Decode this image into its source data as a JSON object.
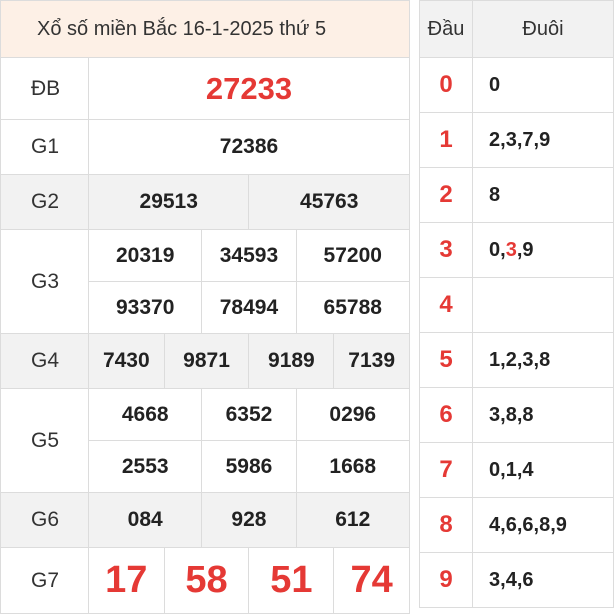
{
  "title": "Xổ số miền Bắc 16-1-2025 thứ 5",
  "prizes": {
    "db": {
      "label": "ĐB",
      "numbers": [
        "27233"
      ]
    },
    "g1": {
      "label": "G1",
      "numbers": [
        "72386"
      ]
    },
    "g2": {
      "label": "G2",
      "numbers": [
        "29513",
        "45763"
      ]
    },
    "g3": {
      "label": "G3",
      "numbers": [
        "20319",
        "34593",
        "57200",
        "93370",
        "78494",
        "65788"
      ]
    },
    "g4": {
      "label": "G4",
      "numbers": [
        "7430",
        "9871",
        "9189",
        "7139"
      ]
    },
    "g5": {
      "label": "G5",
      "numbers": [
        "4668",
        "6352",
        "0296",
        "2553",
        "5986",
        "1668"
      ]
    },
    "g6": {
      "label": "G6",
      "numbers": [
        "084",
        "928",
        "612"
      ]
    },
    "g7": {
      "label": "G7",
      "numbers": [
        "17",
        "58",
        "51",
        "74"
      ]
    }
  },
  "heads_table": {
    "header_head": "Đầu",
    "header_tail": "Đuôi",
    "rows": [
      {
        "head": "0",
        "tails": [
          "0"
        ]
      },
      {
        "head": "1",
        "tails": [
          "2",
          "3",
          "7",
          "9"
        ]
      },
      {
        "head": "2",
        "tails": [
          "8"
        ]
      },
      {
        "head": "3",
        "tails": [
          "0",
          "3",
          "9"
        ],
        "highlight_index": 1
      },
      {
        "head": "4",
        "tails": []
      },
      {
        "head": "5",
        "tails": [
          "1",
          "2",
          "3",
          "8"
        ]
      },
      {
        "head": "6",
        "tails": [
          "3",
          "8",
          "8"
        ]
      },
      {
        "head": "7",
        "tails": [
          "0",
          "1",
          "4"
        ]
      },
      {
        "head": "8",
        "tails": [
          "4",
          "6",
          "6",
          "8",
          "9"
        ]
      },
      {
        "head": "9",
        "tails": [
          "3",
          "4",
          "6"
        ]
      }
    ]
  },
  "colors": {
    "accent_red": "#e53935",
    "title_bg": "#fdf0e6",
    "alt_row_bg": "#f2f2f2"
  }
}
